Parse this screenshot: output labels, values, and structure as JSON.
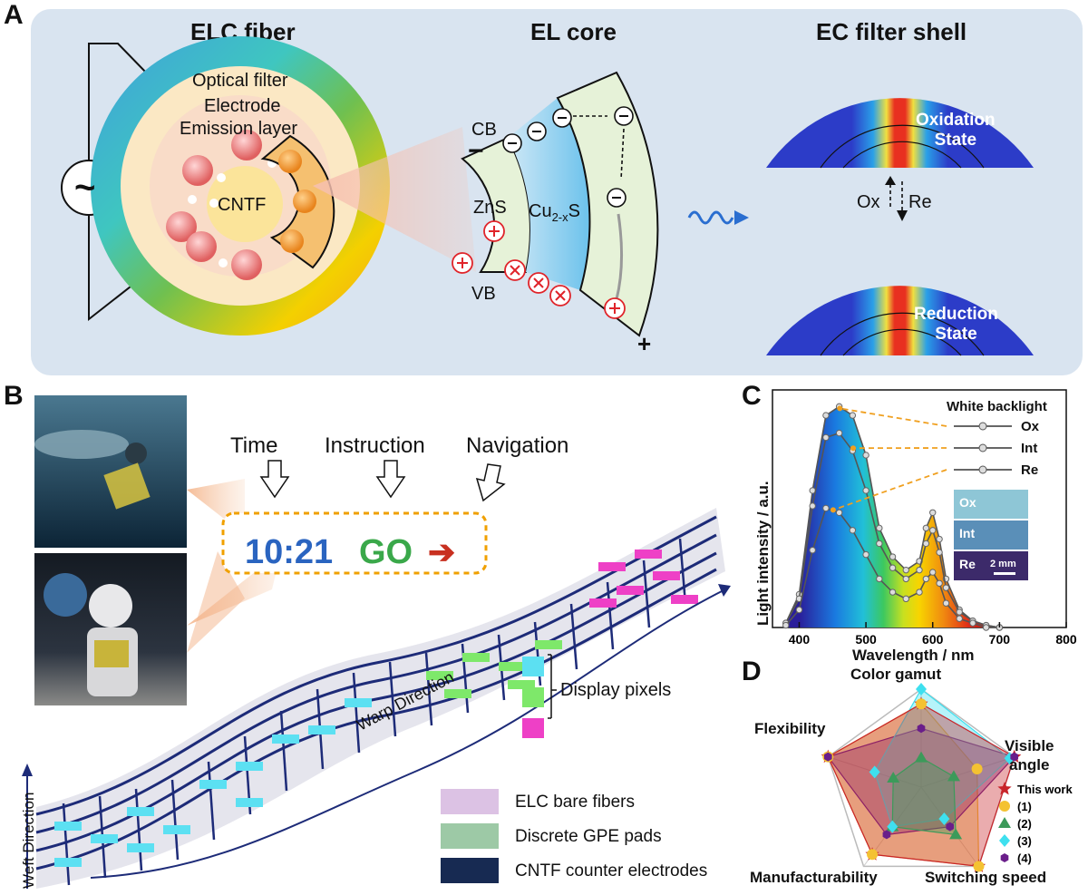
{
  "panel_labels": {
    "a": "A",
    "b": "B",
    "c": "C",
    "d": "D"
  },
  "panel_a": {
    "title_fiber": "ELC fiber",
    "title_core": "EL core",
    "title_shell": "EC filter shell",
    "layer_optical": "Optical filter",
    "layer_electrode": "Electrode",
    "layer_emission": "Emission layer",
    "cntf": "CNTF",
    "ac_symbol": "~",
    "cb": "CB",
    "vb": "VB",
    "zns": "ZnS",
    "cu_base": "Cu",
    "cu_sub": "2-x",
    "cu_end": "S",
    "minus": "−",
    "plus": "+",
    "oxidation_line1": "Oxidation",
    "oxidation_line2": "State",
    "reduction_line1": "Reduction",
    "reduction_line2": "State",
    "ox": "Ox",
    "re": "Re"
  },
  "panel_b": {
    "label_time": "Time",
    "label_instruction": "Instruction",
    "label_navigation": "Navigation",
    "display_time": "10:21",
    "display_go": "GO",
    "display_arrow": "➔",
    "display_pixels": "Display pixels",
    "warp": "Warp Direction",
    "weft": "Weft Direction",
    "legend": [
      {
        "label": "ELC bare fibers",
        "color": "#dcc2e4"
      },
      {
        "label": "Discrete GPE pads",
        "color": "#9dc9a6"
      },
      {
        "label": "CNTF  counter electrodes",
        "color": "#172a52"
      }
    ],
    "pixel_colors": [
      "#5ce0f2",
      "#7ee86a",
      "#ee40c6"
    ]
  },
  "panel_c": {
    "chart_data": {
      "type": "line",
      "xlabel": "Wavelength / nm",
      "ylabel": "Light intensity / a.u.",
      "xlim": [
        360,
        800
      ],
      "xticks": [
        400,
        500,
        600,
        700,
        800
      ],
      "legend_title": "White backlight",
      "legend_position": "top-right",
      "series": [
        {
          "name": "Ox",
          "x": [
            380,
            400,
            420,
            440,
            460,
            480,
            500,
            520,
            540,
            560,
            580,
            590,
            600,
            610,
            620,
            640,
            660,
            680,
            700
          ],
          "y": [
            0.02,
            0.15,
            0.62,
            0.96,
            1.0,
            0.96,
            0.78,
            0.45,
            0.32,
            0.26,
            0.3,
            0.45,
            0.52,
            0.4,
            0.22,
            0.08,
            0.03,
            0.01,
            0.0
          ]
        },
        {
          "name": "Int",
          "x": [
            380,
            400,
            420,
            440,
            460,
            480,
            500,
            520,
            540,
            560,
            580,
            590,
            600,
            610,
            620,
            640,
            660,
            680,
            700
          ],
          "y": [
            0.02,
            0.13,
            0.55,
            0.86,
            0.88,
            0.8,
            0.62,
            0.38,
            0.27,
            0.22,
            0.26,
            0.38,
            0.44,
            0.34,
            0.18,
            0.07,
            0.03,
            0.01,
            0.0
          ]
        },
        {
          "name": "Re",
          "x": [
            380,
            400,
            420,
            440,
            460,
            480,
            500,
            520,
            540,
            560,
            580,
            590,
            600,
            610,
            620,
            640,
            660,
            680,
            700
          ],
          "y": [
            0.01,
            0.08,
            0.35,
            0.54,
            0.52,
            0.44,
            0.33,
            0.22,
            0.16,
            0.13,
            0.16,
            0.22,
            0.25,
            0.2,
            0.11,
            0.04,
            0.02,
            0.0,
            0.0
          ]
        }
      ]
    },
    "inset_labels": [
      "Ox",
      "Int",
      "Re"
    ],
    "scale_bar": "2 mm"
  },
  "panel_d": {
    "chart_data": {
      "type": "radar",
      "axes": [
        "Color gamut",
        "Visible angle",
        "Switching speed",
        "Manufacturability",
        "Flexibility"
      ],
      "legend_position": "right",
      "series": [
        {
          "name": "This work",
          "values": [
            0.85,
            1.0,
            1.0,
            0.85,
            1.0
          ],
          "color": "#c8242a",
          "marker": "star"
        },
        {
          "name": "(1)",
          "values": [
            0.85,
            0.6,
            1.0,
            0.85,
            1.0
          ],
          "color": "#f4c232",
          "marker": "circle"
        },
        {
          "name": "(2)",
          "values": [
            0.3,
            0.35,
            0.6,
            0.5,
            0.3
          ],
          "color": "#3c9a5a",
          "marker": "triangle"
        },
        {
          "name": "(3)",
          "values": [
            1.0,
            0.95,
            0.4,
            0.5,
            0.5
          ],
          "color": "#3ee0ef",
          "marker": "diamond"
        },
        {
          "name": "(4)",
          "values": [
            0.6,
            1.0,
            0.5,
            0.6,
            1.0
          ],
          "color": "#6a1e8a",
          "marker": "hexagon"
        }
      ]
    },
    "label_color_gamut": "Color gamut",
    "label_visible_1": "Visible",
    "label_visible_2": "angle",
    "label_switching": "Switching speed",
    "label_manufacturability": "Manufacturability",
    "label_flexibility": "Flexibility"
  }
}
